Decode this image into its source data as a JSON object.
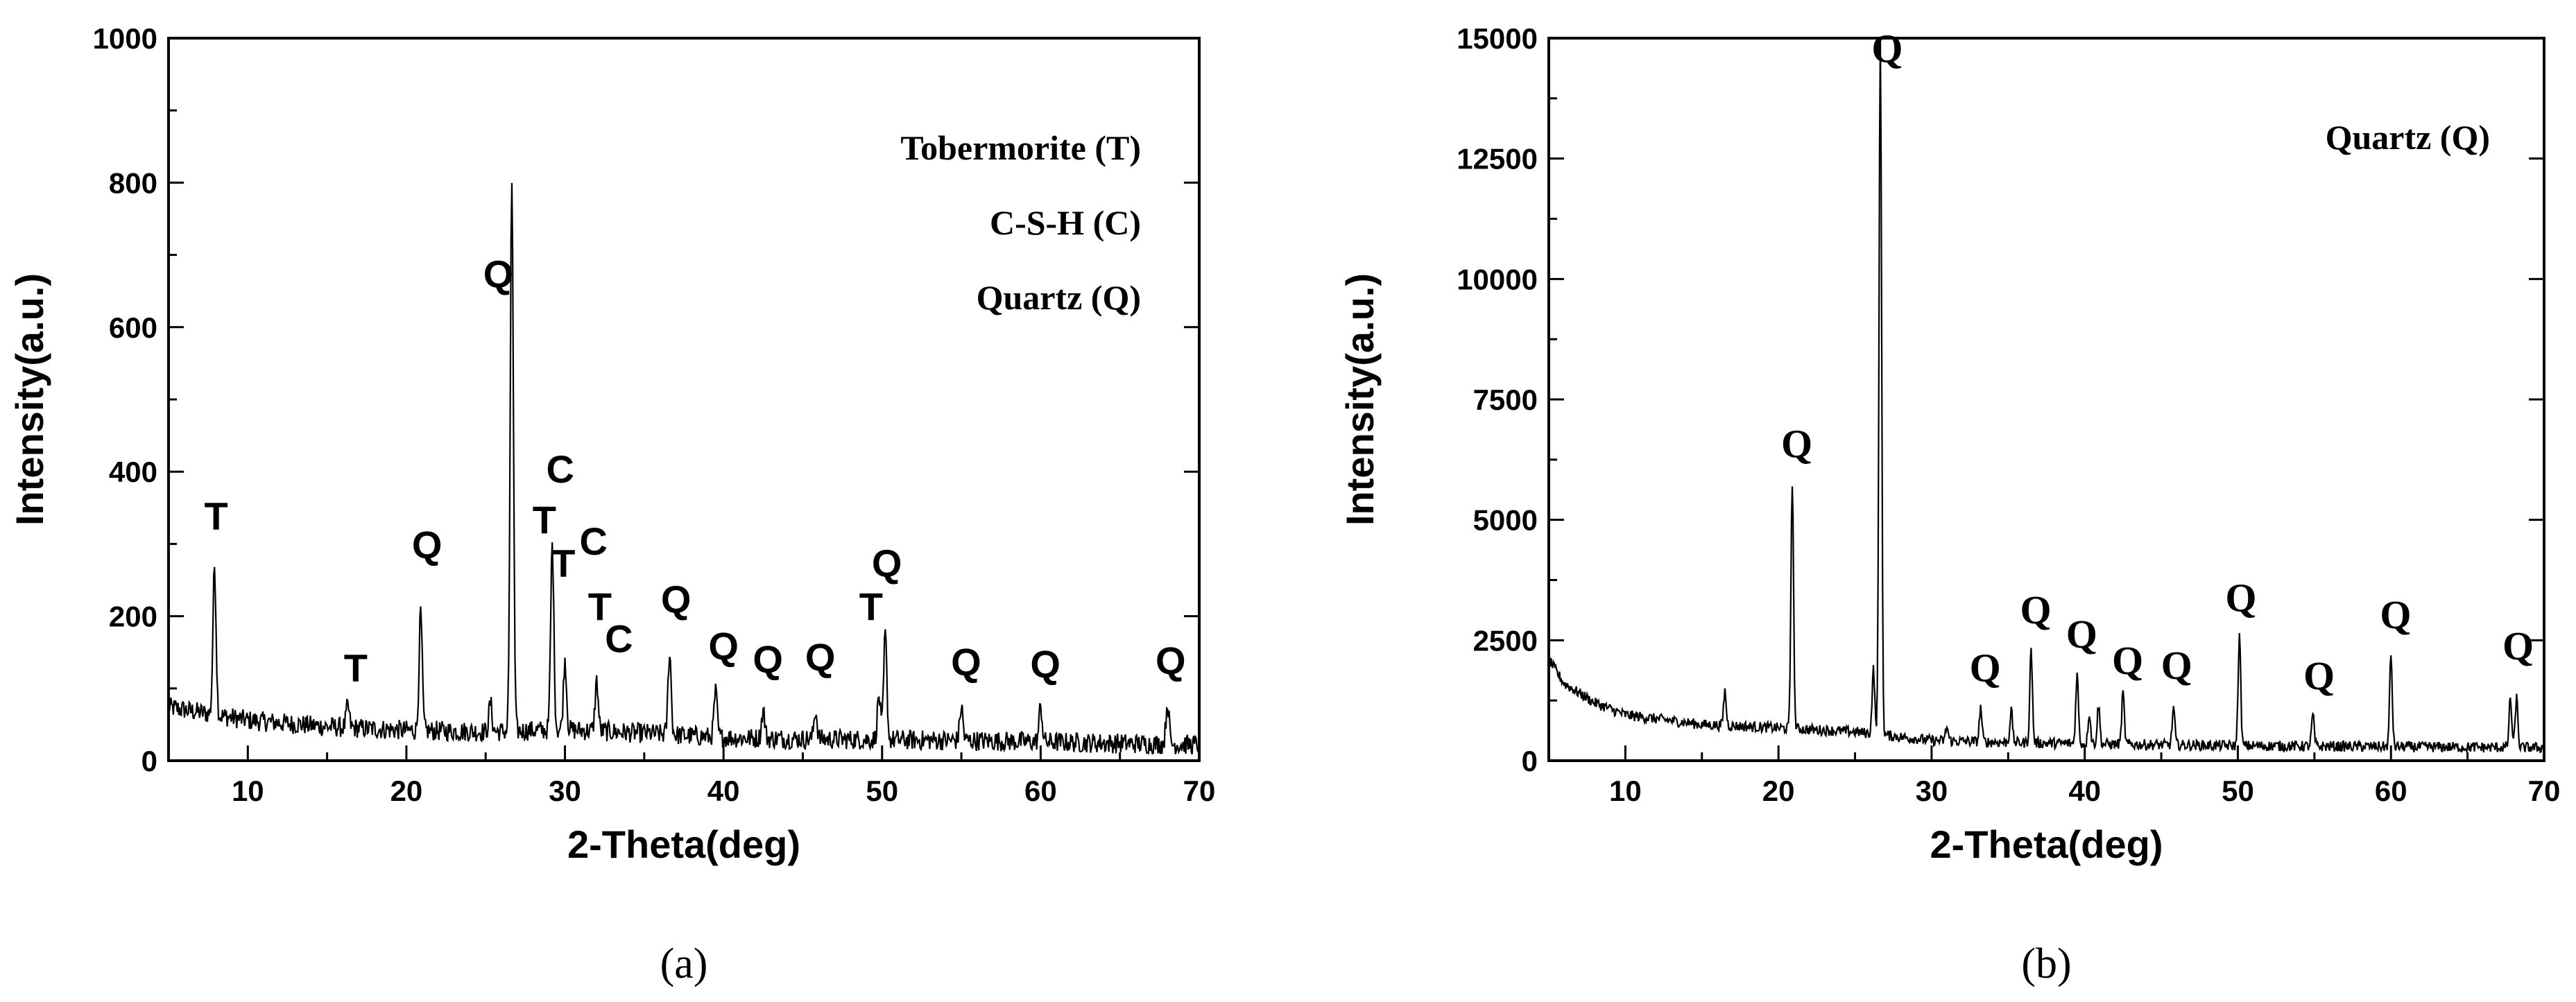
{
  "chart_data": [
    {
      "id": "a",
      "type": "line",
      "caption": "(a)",
      "xlabel": "2-Theta(deg)",
      "ylabel": "Intensity(a.u.)",
      "xlim": [
        5,
        70
      ],
      "ylim": [
        0,
        1000
      ],
      "xticks": [
        10,
        20,
        30,
        40,
        50,
        60,
        70
      ],
      "yticks": [
        0,
        200,
        400,
        600,
        800,
        1000
      ],
      "legend": [
        "Tobermorite  (T)",
        "C-S-H  (C)",
        "Quartz  (Q)"
      ],
      "baseline": {
        "x": [
          5,
          10,
          15,
          20,
          25,
          30,
          35,
          40,
          45,
          50,
          55,
          60,
          65,
          70
        ],
        "y": [
          74,
          56,
          47,
          42,
          40,
          43,
          38,
          32,
          30,
          29,
          28,
          26,
          24,
          22
        ]
      },
      "peaks": [
        {
          "x": 7.9,
          "y": 270,
          "label": "T"
        },
        {
          "x": 16.3,
          "y": 75,
          "label": "T"
        },
        {
          "x": 20.9,
          "y": 205,
          "label": "Q"
        },
        {
          "x": 25.3,
          "y": 80,
          "label": ""
        },
        {
          "x": 26.65,
          "y": 800,
          "label": "Q"
        },
        {
          "x": 29.2,
          "y": 300,
          "label": "T"
        },
        {
          "x": 30.0,
          "y": 140,
          "label": "C"
        },
        {
          "x": 32.0,
          "y": 110,
          "label": "T"
        },
        {
          "x": 36.6,
          "y": 150,
          "label": "Q"
        },
        {
          "x": 39.5,
          "y": 95,
          "label": "Q"
        },
        {
          "x": 42.5,
          "y": 70,
          "label": "Q"
        },
        {
          "x": 45.8,
          "y": 70,
          "label": "Q"
        },
        {
          "x": 49.8,
          "y": 90,
          "label": "T"
        },
        {
          "x": 50.2,
          "y": 175,
          "label": "Q"
        },
        {
          "x": 55.0,
          "y": 75,
          "label": "Q"
        },
        {
          "x": 60.0,
          "y": 75,
          "label": "Q"
        },
        {
          "x": 68.0,
          "y": 80,
          "label": "Q"
        }
      ],
      "annotations": [
        {
          "text": "T",
          "x": 8.0,
          "y": 320
        },
        {
          "text": "T",
          "x": 16.8,
          "y": 110
        },
        {
          "text": "Q",
          "x": 21.3,
          "y": 280
        },
        {
          "text": "Q",
          "x": 25.8,
          "y": 655
        },
        {
          "text": "C",
          "x": 29.7,
          "y": 385
        },
        {
          "text": "T",
          "x": 28.7,
          "y": 315
        },
        {
          "text": "C",
          "x": 31.8,
          "y": 285
        },
        {
          "text": "T",
          "x": 29.9,
          "y": 255
        },
        {
          "text": "T",
          "x": 32.2,
          "y": 195
        },
        {
          "text": "C",
          "x": 33.4,
          "y": 150
        },
        {
          "text": "Q",
          "x": 37.0,
          "y": 205
        },
        {
          "text": "Q",
          "x": 40.0,
          "y": 140
        },
        {
          "text": "Q",
          "x": 42.8,
          "y": 122
        },
        {
          "text": "Q",
          "x": 46.1,
          "y": 125
        },
        {
          "text": "T",
          "x": 49.3,
          "y": 195
        },
        {
          "text": "Q",
          "x": 50.3,
          "y": 255
        },
        {
          "text": "Q",
          "x": 55.3,
          "y": 118
        },
        {
          "text": "Q",
          "x": 60.3,
          "y": 115
        },
        {
          "text": "Q",
          "x": 68.2,
          "y": 120
        }
      ]
    },
    {
      "id": "b",
      "type": "line",
      "caption": "(b)",
      "xlabel": "2-Theta(deg)",
      "ylabel": "Intensity(a.u.)",
      "xlim": [
        5,
        70
      ],
      "ylim": [
        0,
        15000
      ],
      "xticks": [
        10,
        20,
        30,
        40,
        50,
        60,
        70
      ],
      "yticks": [
        0,
        2500,
        5000,
        7500,
        10000,
        12500,
        15000
      ],
      "legend": [
        "Quartz  (Q)"
      ],
      "baseline": {
        "x": [
          5,
          6,
          8,
          10,
          15,
          20,
          25,
          30,
          35,
          40,
          45,
          50,
          55,
          60,
          65,
          70
        ],
        "y": [
          2100,
          1600,
          1200,
          950,
          750,
          680,
          600,
          420,
          380,
          350,
          330,
          310,
          300,
          290,
          280,
          270
        ]
      },
      "peaks": [
        {
          "x": 16.5,
          "y": 1450,
          "label": ""
        },
        {
          "x": 20.9,
          "y": 5800,
          "label": "Q"
        },
        {
          "x": 26.2,
          "y": 1900,
          "label": ""
        },
        {
          "x": 26.65,
          "y": 15000,
          "label": "Q"
        },
        {
          "x": 31.0,
          "y": 700,
          "label": ""
        },
        {
          "x": 33.2,
          "y": 1100,
          "label": "Q"
        },
        {
          "x": 35.2,
          "y": 1050,
          "label": ""
        },
        {
          "x": 36.5,
          "y": 2300,
          "label": "Q"
        },
        {
          "x": 39.5,
          "y": 1800,
          "label": "Q"
        },
        {
          "x": 40.3,
          "y": 1000,
          "label": ""
        },
        {
          "x": 40.9,
          "y": 1150,
          "label": ""
        },
        {
          "x": 42.5,
          "y": 1400,
          "label": "Q"
        },
        {
          "x": 45.8,
          "y": 1100,
          "label": "Q"
        },
        {
          "x": 50.1,
          "y": 2600,
          "label": "Q"
        },
        {
          "x": 54.9,
          "y": 950,
          "label": "Q"
        },
        {
          "x": 60.0,
          "y": 2200,
          "label": "Q"
        },
        {
          "x": 67.8,
          "y": 1300,
          "label": ""
        },
        {
          "x": 68.2,
          "y": 1300,
          "label": "Q"
        }
      ],
      "annotations": [
        {
          "text": "Q",
          "x": 27.1,
          "y": 14500
        },
        {
          "text": "Q",
          "x": 21.2,
          "y": 6300
        },
        {
          "text": "Q",
          "x": 33.5,
          "y": 1650
        },
        {
          "text": "Q",
          "x": 36.8,
          "y": 2850
        },
        {
          "text": "Q",
          "x": 39.8,
          "y": 2350
        },
        {
          "text": "Q",
          "x": 42.8,
          "y": 1800
        },
        {
          "text": "Q",
          "x": 46.0,
          "y": 1700
        },
        {
          "text": "Q",
          "x": 50.2,
          "y": 3100
        },
        {
          "text": "Q",
          "x": 55.3,
          "y": 1480
        },
        {
          "text": "Q",
          "x": 60.3,
          "y": 2750
        },
        {
          "text": "Q",
          "x": 68.3,
          "y": 2100
        }
      ]
    }
  ]
}
